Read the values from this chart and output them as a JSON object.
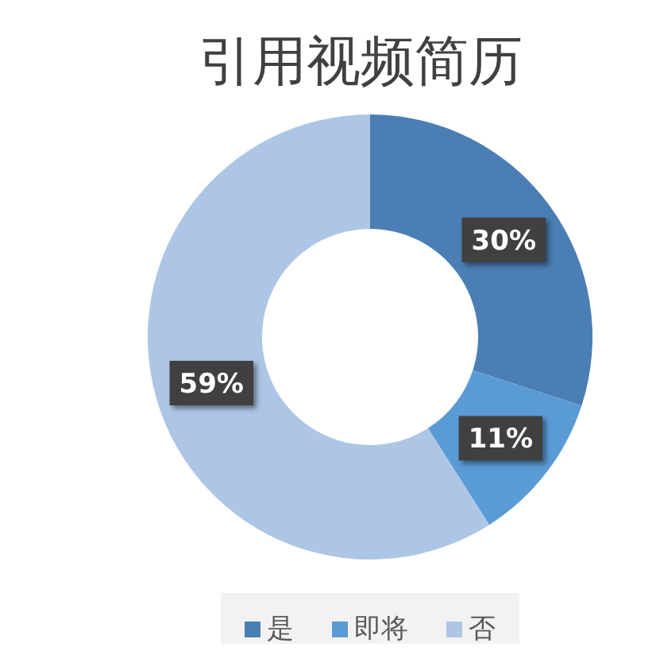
{
  "chart_data": {
    "type": "donut",
    "title": "引用视频简历",
    "categories": [
      "是",
      "即将",
      "否"
    ],
    "values": [
      30,
      11,
      59
    ],
    "colors": [
      "#4a7eb4",
      "#5b9bd5",
      "#adc6e5"
    ],
    "value_labels": [
      "30%",
      "11%",
      "59%"
    ],
    "legend": "bottom"
  }
}
